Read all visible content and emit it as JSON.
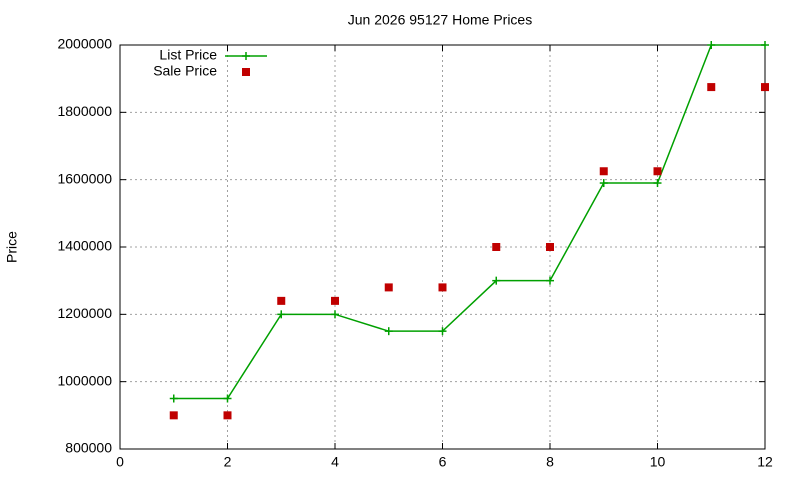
{
  "chart_data": {
    "type": "line",
    "title": "Jun 2026 95127 Home Prices",
    "y_label": "Price",
    "x": [
      1,
      2,
      3,
      4,
      5,
      6,
      7,
      8,
      9,
      10,
      11,
      12
    ],
    "series": [
      {
        "name": "List Price",
        "color": "#00a000",
        "line": true,
        "marker": "plus",
        "values": [
          950000,
          950000,
          1200000,
          1200000,
          1150000,
          1150000,
          1300000,
          1300000,
          1590000,
          1590000,
          2000000,
          2000000
        ]
      },
      {
        "name": "Sale Price",
        "color": "#c00000",
        "line": false,
        "marker": "square",
        "values": [
          900000,
          900000,
          1240000,
          1240000,
          1280000,
          1280000,
          1400000,
          1400000,
          1625000,
          1625000,
          1875000,
          1875000
        ]
      }
    ],
    "xlim": [
      0,
      12
    ],
    "xticks": [
      0,
      2,
      4,
      6,
      8,
      10,
      12
    ],
    "ylim": [
      800000,
      2000000
    ],
    "yticks": [
      800000,
      1000000,
      1200000,
      1400000,
      1600000,
      1800000,
      2000000
    ],
    "grid": true,
    "legend": "top-left"
  }
}
